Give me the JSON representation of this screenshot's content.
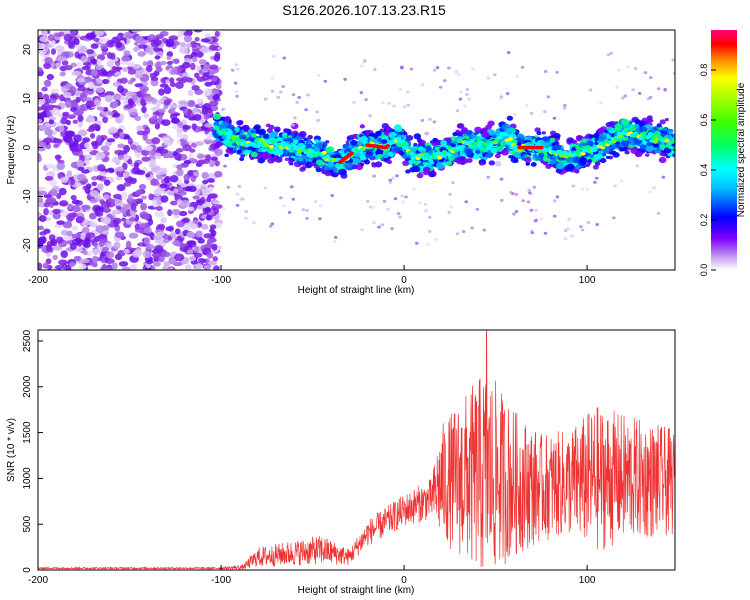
{
  "title": "S126.2026.107.13.23.R15",
  "colors": {
    "snr_line": "#ee3333",
    "scatter_scale": [
      "#ff00ff",
      "#ff00cc",
      "#cc00ff",
      "#8000ff",
      "#4000ff",
      "#0000ff",
      "#0080ff",
      "#00ffff",
      "#00ff80",
      "#00ff00",
      "#80ff00",
      "#ffff00",
      "#ffb000",
      "#ff6000",
      "#ff0000"
    ]
  },
  "chart_data": [
    {
      "type": "heatmap",
      "name": "spectrogram",
      "xlabel": "Height of straight line (km)",
      "ylabel": "Frequency (Hz)",
      "xlim": [
        -200,
        148
      ],
      "ylim": [
        -25,
        24
      ],
      "xticks": [
        -200,
        -100,
        0,
        100
      ],
      "yticks": [
        -20,
        -10,
        0,
        10,
        20
      ],
      "noise_region_x": [
        -200,
        -103
      ],
      "track_centerline": [
        {
          "x": -103,
          "y": 4
        },
        {
          "x": -90,
          "y": 1
        },
        {
          "x": -75,
          "y": 1
        },
        {
          "x": -60,
          "y": 0
        },
        {
          "x": -48,
          "y": -1
        },
        {
          "x": -35,
          "y": -3
        },
        {
          "x": -28,
          "y": -1
        },
        {
          "x": -20,
          "y": 0.5
        },
        {
          "x": -10,
          "y": 0
        },
        {
          "x": -3,
          "y": 2
        },
        {
          "x": 5,
          "y": -2
        },
        {
          "x": 15,
          "y": -2
        },
        {
          "x": 25,
          "y": -1
        },
        {
          "x": 35,
          "y": 1
        },
        {
          "x": 45,
          "y": 0
        },
        {
          "x": 55,
          "y": 2.5
        },
        {
          "x": 62,
          "y": 0
        },
        {
          "x": 75,
          "y": 0
        },
        {
          "x": 90,
          "y": -2
        },
        {
          "x": 105,
          "y": 0
        },
        {
          "x": 120,
          "y": 3
        },
        {
          "x": 135,
          "y": 2
        },
        {
          "x": 148,
          "y": 1
        }
      ],
      "colorbar": {
        "label": "Normalized spectral amplitude",
        "range": [
          0,
          0.96
        ],
        "ticks": [
          "0.0",
          "0.2",
          "0.4",
          "0.6",
          "0.8"
        ]
      }
    },
    {
      "type": "line",
      "name": "snr",
      "xlabel": "Height of straight line (km)",
      "ylabel": "SNR (10 * v/v)",
      "xlim": [
        -200,
        148
      ],
      "ylim": [
        0,
        2620
      ],
      "xticks": [
        -200,
        -100,
        0,
        100
      ],
      "yticks": [
        0,
        500,
        1000,
        1500,
        2000,
        2500
      ],
      "envelope": [
        {
          "x": -200,
          "mean": 20,
          "spread": 10
        },
        {
          "x": -100,
          "mean": 20,
          "spread": 10
        },
        {
          "x": -88,
          "mean": 30,
          "spread": 30
        },
        {
          "x": -80,
          "mean": 140,
          "spread": 120
        },
        {
          "x": -45,
          "mean": 220,
          "spread": 180
        },
        {
          "x": -30,
          "mean": 140,
          "spread": 100
        },
        {
          "x": -20,
          "mean": 400,
          "spread": 160
        },
        {
          "x": 0,
          "mean": 650,
          "spread": 200
        },
        {
          "x": 15,
          "mean": 780,
          "spread": 250
        },
        {
          "x": 20,
          "mean": 950,
          "spread": 700
        },
        {
          "x": 45,
          "mean": 1050,
          "spread": 1300
        },
        {
          "x": 60,
          "mean": 950,
          "spread": 900
        },
        {
          "x": 75,
          "mean": 900,
          "spread": 650
        },
        {
          "x": 90,
          "mean": 950,
          "spread": 650
        },
        {
          "x": 105,
          "mean": 1000,
          "spread": 900
        },
        {
          "x": 125,
          "mean": 1000,
          "spread": 750
        },
        {
          "x": 148,
          "mean": 950,
          "spread": 650
        }
      ],
      "peak": {
        "x": 45,
        "y": 2620
      }
    }
  ]
}
